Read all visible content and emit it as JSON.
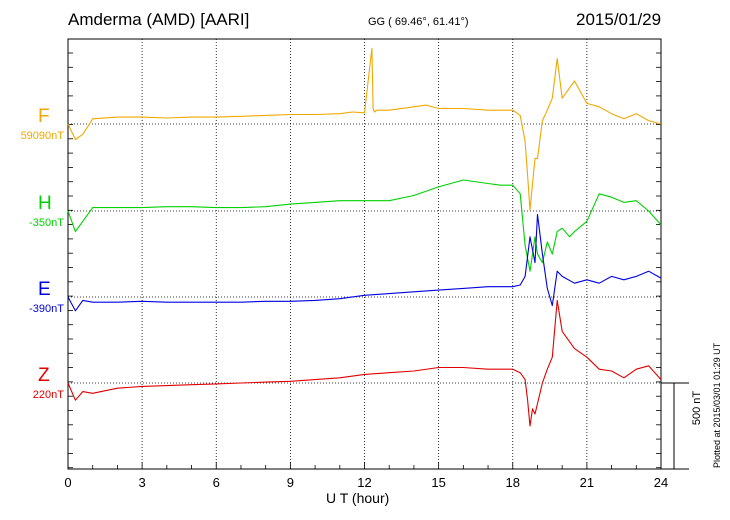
{
  "header": {
    "station": "Amderma (AMD)  [AARI]",
    "coords": "GG ( 69.46°,  61.41°)",
    "date": "2015/01/29"
  },
  "footer": {
    "plotted": "Plotted at 2015/03/01 01:29 UT",
    "scale_label": "500 nT"
  },
  "chart_data": {
    "type": "line",
    "xlabel": "U T (hour)",
    "xlim": [
      0,
      24
    ],
    "xticks": [
      0,
      3,
      6,
      9,
      12,
      15,
      18,
      21,
      24
    ],
    "scale_bar_nT": 500,
    "grid": true,
    "series": [
      {
        "name": "F",
        "baseline_label": "59090nT",
        "color": "#f0a800",
        "x": [
          0,
          0.3,
          0.6,
          1,
          2,
          3,
          4,
          5,
          6,
          7,
          8,
          9,
          10,
          11,
          11.5,
          12,
          12.3,
          12.35,
          12.4,
          12.5,
          13,
          14,
          14.5,
          15,
          16,
          17,
          17.5,
          18,
          18.3,
          18.5,
          18.6,
          18.7,
          18.8,
          18.9,
          19,
          19.2,
          19.4,
          19.6,
          19.8,
          20,
          20.5,
          21,
          21.5,
          22,
          22.5,
          23,
          23.5,
          24
        ],
        "values": [
          0,
          -90,
          -60,
          30,
          40,
          40,
          35,
          40,
          40,
          45,
          50,
          55,
          55,
          60,
          70,
          65,
          440,
          90,
          70,
          80,
          80,
          100,
          110,
          90,
          90,
          80,
          80,
          80,
          50,
          -100,
          -300,
          -500,
          -350,
          -200,
          -200,
          20,
          80,
          150,
          380,
          150,
          250,
          120,
          100,
          60,
          30,
          60,
          20,
          0
        ]
      },
      {
        "name": "H",
        "baseline_label": "-350nT",
        "color": "#00d000",
        "x": [
          0,
          0.3,
          0.6,
          1,
          2,
          3,
          4,
          5,
          6,
          7,
          8,
          9,
          10,
          11,
          12,
          13,
          14,
          15,
          16,
          17,
          17.5,
          18,
          18.3,
          18.5,
          18.7,
          18.9,
          19,
          19.2,
          19.4,
          19.6,
          19.8,
          20,
          20.3,
          20.5,
          21,
          21.5,
          22,
          22.5,
          23,
          23.5,
          24
        ],
        "values": [
          0,
          -120,
          -60,
          20,
          20,
          20,
          25,
          25,
          20,
          20,
          25,
          40,
          50,
          60,
          60,
          60,
          90,
          140,
          180,
          160,
          150,
          150,
          100,
          -200,
          -350,
          -150,
          -250,
          -300,
          -180,
          -250,
          -120,
          -100,
          -150,
          -120,
          -60,
          100,
          80,
          50,
          60,
          0,
          -80
        ]
      },
      {
        "name": "E",
        "baseline_label": "-390nT",
        "color": "#0000e0",
        "x": [
          0,
          0.3,
          0.6,
          1,
          2,
          3,
          4,
          5,
          6,
          7,
          8,
          9,
          10,
          11,
          12,
          13,
          14,
          15,
          16,
          17,
          18,
          18.3,
          18.5,
          18.7,
          18.9,
          19,
          19.2,
          19.4,
          19.6,
          19.8,
          20,
          20.5,
          21,
          21.5,
          22,
          22.5,
          23,
          23.5,
          24
        ],
        "values": [
          0,
          -80,
          -20,
          -30,
          -30,
          -25,
          -30,
          -30,
          -30,
          -30,
          -25,
          -25,
          -20,
          -10,
          10,
          20,
          30,
          40,
          50,
          60,
          60,
          70,
          120,
          350,
          200,
          480,
          250,
          50,
          -50,
          150,
          120,
          80,
          100,
          80,
          120,
          100,
          120,
          150,
          110
        ]
      },
      {
        "name": "Z",
        "baseline_label": "220nT",
        "color": "#e00000",
        "x": [
          0,
          0.3,
          0.6,
          1,
          2,
          3,
          4,
          5,
          6,
          7,
          8,
          9,
          10,
          11,
          12,
          13,
          14,
          15,
          16,
          17,
          17.5,
          18,
          18.3,
          18.5,
          18.6,
          18.7,
          18.8,
          18.9,
          19,
          19.2,
          19.4,
          19.6,
          19.8,
          20,
          20.5,
          21,
          21.5,
          22,
          22.5,
          23,
          23.5,
          24
        ],
        "values": [
          0,
          -100,
          -50,
          -60,
          -30,
          -20,
          -15,
          -10,
          -5,
          0,
          5,
          10,
          20,
          30,
          50,
          60,
          70,
          90,
          90,
          80,
          80,
          80,
          60,
          20,
          -100,
          -250,
          -150,
          -180,
          -120,
          0,
          80,
          150,
          480,
          300,
          200,
          150,
          80,
          70,
          30,
          80,
          100,
          20
        ]
      }
    ]
  }
}
